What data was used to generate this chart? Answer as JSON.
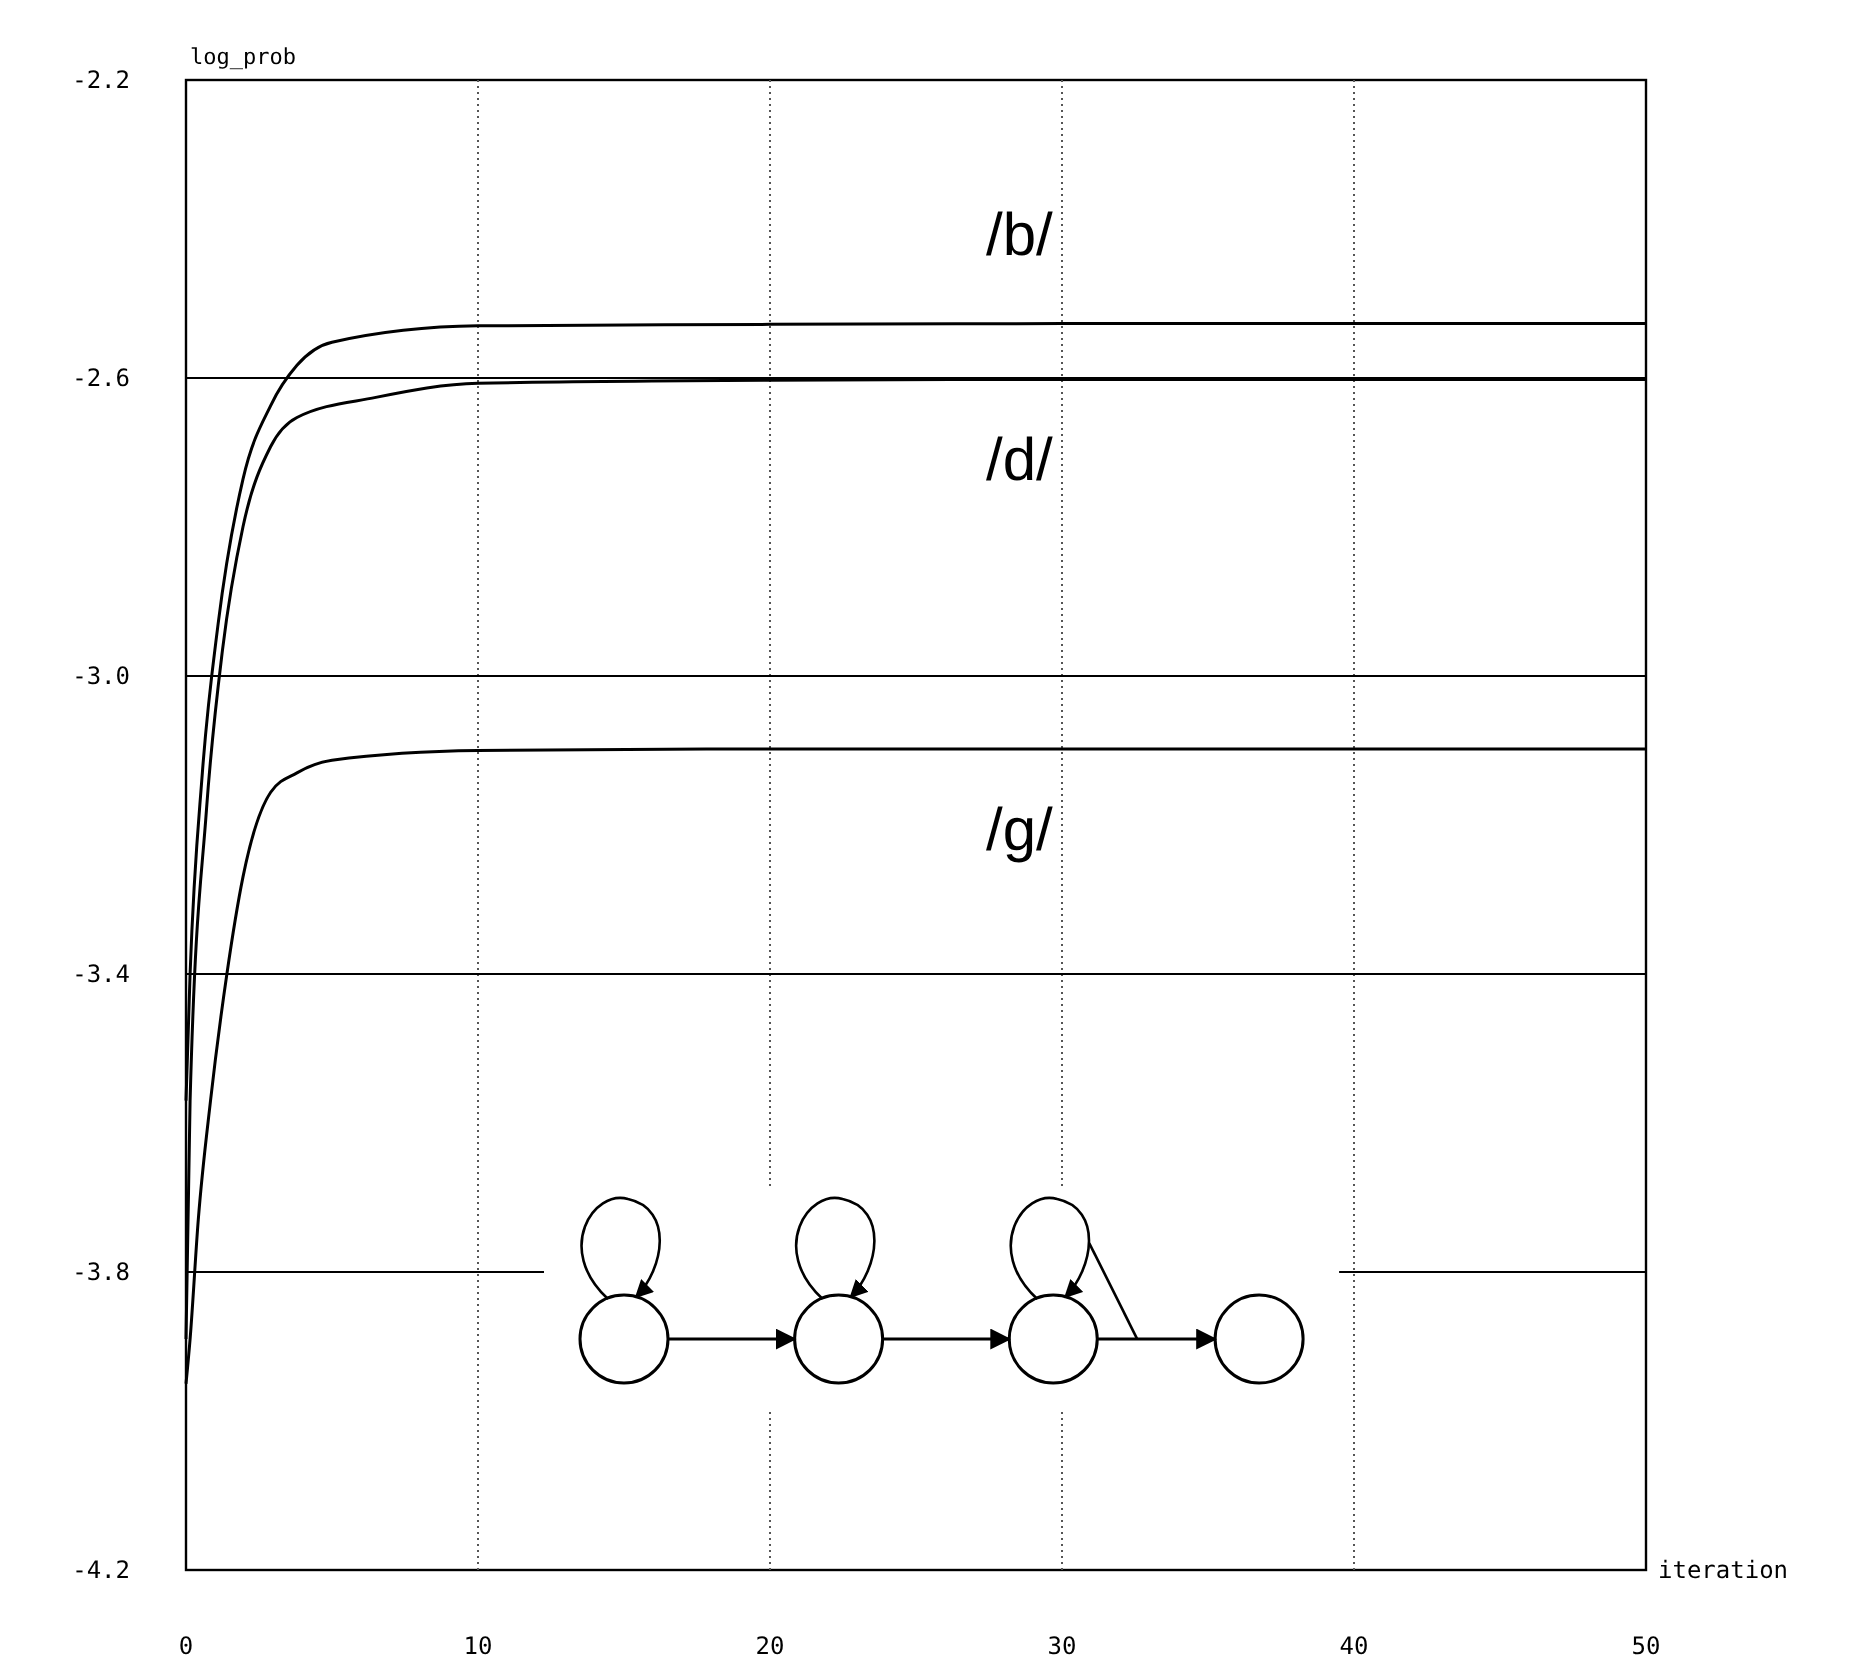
{
  "chart_data": {
    "type": "line",
    "xlabel": "iteration",
    "ylabel": "log_prob",
    "xlim": [
      0,
      50
    ],
    "ylim": [
      -4.2,
      -2.2
    ],
    "xticks": [
      0,
      10,
      20,
      30,
      40,
      50
    ],
    "yticks": [
      -2.2,
      -2.6,
      {
        "value": -3.0,
        "label": "-3.0"
      },
      -3.4,
      -3.8,
      -4.2
    ],
    "grid": true,
    "series": [
      {
        "name": "/b/",
        "color": "#000000",
        "x": [
          0,
          0.14,
          0.56,
          1.1,
          1.95,
          2.9,
          3.8,
          5,
          10,
          20,
          30,
          40,
          50
        ],
        "values": [
          -3.57,
          -3.4,
          -3.13,
          -2.93,
          -2.736,
          -2.637,
          -2.583,
          -2.552,
          -2.53,
          -2.528,
          -2.527,
          -2.527,
          -2.527
        ]
      },
      {
        "name": "/d/",
        "color": "#000000",
        "x": [
          0,
          0.14,
          0.7,
          1.25,
          1.95,
          2.9,
          3.8,
          6.5,
          10,
          20,
          30,
          40,
          50
        ],
        "values": [
          -3.89,
          -3.57,
          -3.18,
          -2.965,
          -2.8,
          -2.692,
          -2.653,
          -2.626,
          -2.607,
          -2.603,
          -2.602,
          -2.602,
          -2.602
        ]
      },
      {
        "name": "/g/",
        "color": "#000000",
        "x": [
          0,
          0.14,
          0.42,
          0.84,
          1.4,
          1.95,
          2.9,
          3.8,
          5,
          10,
          20,
          30,
          40,
          50
        ],
        "values": [
          -3.95,
          -3.89,
          -3.73,
          -3.57,
          -3.4,
          -3.27,
          -3.156,
          -3.13,
          -3.113,
          -3.1,
          -3.098,
          -3.098,
          -3.098,
          -3.098
        ]
      }
    ]
  }
}
